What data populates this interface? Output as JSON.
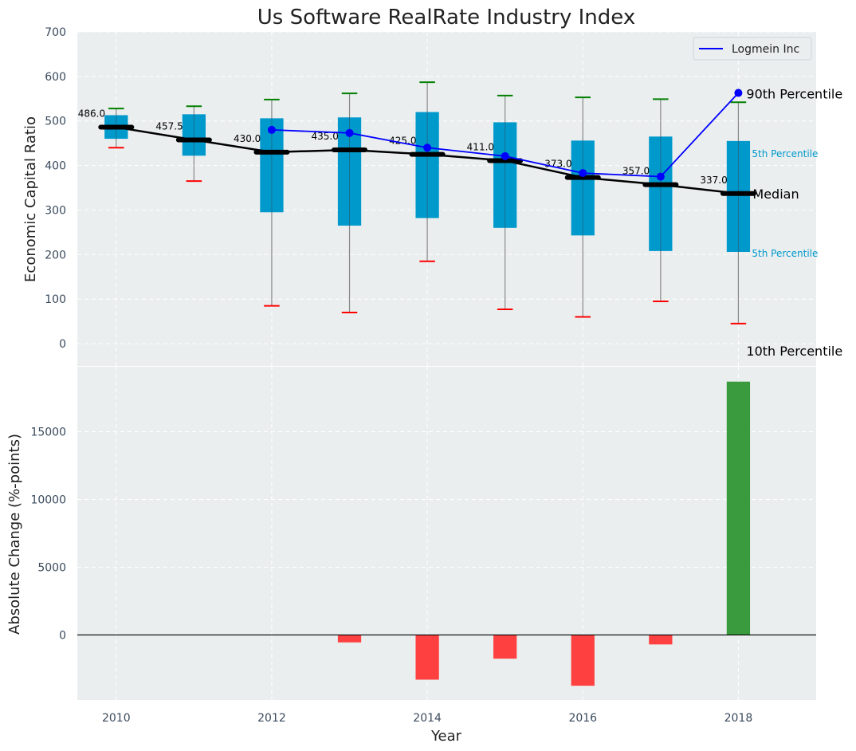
{
  "chart_data": {
    "title": "Us Software RealRate Industry Index",
    "colors": {
      "box": "#0099cc",
      "median": "#000000",
      "company": "#0000ff",
      "whisker_upper": "#008000",
      "whisker_lower": "#ff0000",
      "bar_positive": "#3a9b3e",
      "bar_negative": "#ff4040",
      "panel_bg": "#eaeeef"
    },
    "top": {
      "type": "box",
      "ylabel": "Economic Capital Ratio",
      "ylim": [
        -50,
        700
      ],
      "yticks": [
        0,
        100,
        200,
        300,
        400,
        500,
        600,
        700
      ],
      "years": [
        2010,
        2011,
        2012,
        2013,
        2014,
        2015,
        2016,
        2017,
        2018
      ],
      "p10": [
        440,
        365,
        85,
        70,
        185,
        77,
        60,
        95,
        45
      ],
      "p25": [
        460,
        422,
        295,
        265,
        282,
        260,
        243,
        208,
        206
      ],
      "median": [
        486.0,
        457.5,
        430.0,
        435.0,
        425.0,
        411.0,
        373.0,
        357.0,
        337.0
      ],
      "median_labels": [
        "486.0",
        "457.5",
        "430.0",
        "435.0",
        "425.0",
        "411.0",
        "373.0",
        "357.0",
        "337.0"
      ],
      "p75": [
        513,
        515,
        506,
        508,
        520,
        497,
        456,
        465,
        455
      ],
      "p90": [
        528,
        533,
        548,
        562,
        587,
        557,
        553,
        549,
        542
      ],
      "company": {
        "name": "Logmein Inc",
        "years": [
          2012,
          2013,
          2014,
          2015,
          2016,
          2017,
          2018
        ],
        "values": [
          480,
          473,
          440,
          421,
          383,
          375,
          563
        ]
      },
      "annotations": {
        "p90": "90th Percentile",
        "p75": "5th Percentile",
        "median": "Median",
        "p25": "5th Percentile",
        "p10": "10th Percentile"
      }
    },
    "bottom": {
      "type": "bar",
      "ylabel": "Absolute Change (%-points)",
      "xlabel": "Year",
      "ylim": [
        -4800,
        19800
      ],
      "yticks": [
        0,
        5000,
        10000,
        15000
      ],
      "years": [
        2010,
        2011,
        2012,
        2013,
        2014,
        2015,
        2016,
        2017,
        2018
      ],
      "values": [
        0,
        0,
        0,
        -550,
        -3300,
        -1750,
        -3750,
        -700,
        18700
      ]
    },
    "xticks": [
      2010,
      2012,
      2014,
      2016,
      2018
    ],
    "xlim": [
      2009.5,
      2019
    ]
  }
}
